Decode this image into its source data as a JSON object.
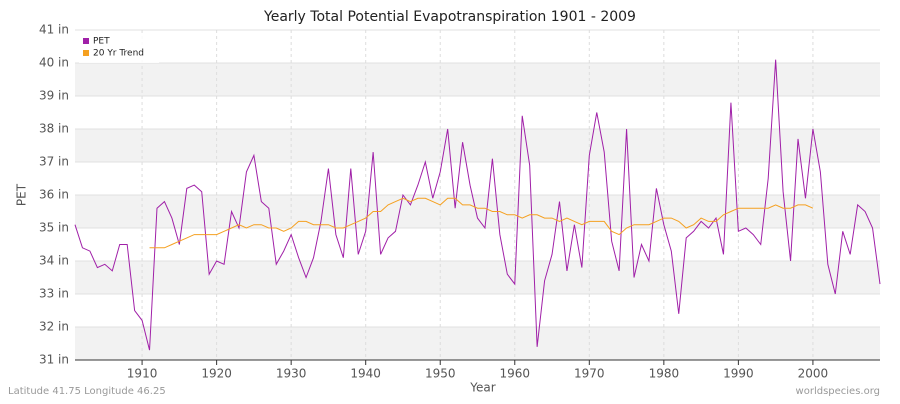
{
  "chart_data": {
    "type": "line",
    "title": "Yearly Total Potential Evapotranspiration 1901 - 2009",
    "x_label": "Year",
    "y_label": "PET",
    "footer_left": "Latitude 41.75 Longitude 46.25",
    "footer_right": "worldspecies.org",
    "legend": "top-left",
    "grid": true,
    "x": [
      1901,
      1902,
      1903,
      1904,
      1905,
      1906,
      1907,
      1908,
      1909,
      1910,
      1911,
      1912,
      1913,
      1914,
      1915,
      1916,
      1917,
      1918,
      1919,
      1920,
      1921,
      1922,
      1923,
      1924,
      1925,
      1926,
      1927,
      1928,
      1929,
      1930,
      1931,
      1932,
      1933,
      1934,
      1935,
      1936,
      1937,
      1938,
      1939,
      1940,
      1941,
      1942,
      1943,
      1944,
      1945,
      1946,
      1947,
      1948,
      1949,
      1950,
      1951,
      1952,
      1953,
      1954,
      1955,
      1956,
      1957,
      1958,
      1959,
      1960,
      1961,
      1962,
      1963,
      1964,
      1965,
      1966,
      1967,
      1968,
      1969,
      1970,
      1971,
      1972,
      1973,
      1974,
      1975,
      1976,
      1977,
      1978,
      1979,
      1980,
      1981,
      1982,
      1983,
      1984,
      1985,
      1986,
      1987,
      1988,
      1989,
      1990,
      1991,
      1992,
      1993,
      1994,
      1995,
      1996,
      1997,
      1998,
      1999,
      2000,
      2001,
      2002,
      2003,
      2004,
      2005,
      2006,
      2007,
      2008,
      2009
    ],
    "series": [
      {
        "name": "PET",
        "color": "#a020a8",
        "values": [
          35.1,
          34.4,
          34.3,
          33.8,
          33.9,
          33.7,
          34.5,
          34.5,
          32.5,
          32.2,
          31.3,
          35.6,
          35.8,
          35.3,
          34.5,
          36.2,
          36.3,
          36.1,
          33.6,
          34.0,
          33.9,
          35.5,
          35.0,
          36.7,
          37.2,
          35.8,
          35.6,
          33.9,
          34.3,
          34.8,
          34.1,
          33.5,
          34.1,
          35.2,
          36.8,
          34.8,
          34.1,
          36.8,
          34.2,
          34.9,
          37.3,
          34.2,
          34.7,
          34.9,
          36.0,
          35.7,
          36.3,
          37.0,
          35.9,
          36.7,
          38.0,
          35.6,
          37.6,
          36.3,
          35.3,
          35.0,
          37.1,
          34.8,
          33.6,
          33.3,
          38.4,
          36.9,
          31.4,
          33.4,
          34.2,
          35.8,
          33.7,
          35.1,
          33.8,
          37.2,
          38.5,
          37.3,
          34.6,
          33.7,
          38.0,
          33.5,
          34.5,
          34.0,
          36.2,
          35.1,
          34.3,
          32.4,
          34.7,
          34.9,
          35.2,
          35.0,
          35.3,
          34.2,
          38.8,
          34.9,
          35.0,
          34.8,
          34.5,
          36.5,
          40.1,
          36.1,
          34.0,
          37.7,
          35.9,
          38.0,
          36.7,
          33.9,
          33.0,
          34.9,
          34.2,
          35.7,
          35.5,
          35.0,
          33.3
        ]
      },
      {
        "name": "20 Yr Trend",
        "color": "#f5a020",
        "values": [
          null,
          null,
          null,
          null,
          null,
          null,
          null,
          null,
          null,
          null,
          34.4,
          34.4,
          34.4,
          34.5,
          34.6,
          34.7,
          34.8,
          34.8,
          34.8,
          34.8,
          34.9,
          35.0,
          35.1,
          35.0,
          35.1,
          35.1,
          35.0,
          35.0,
          34.9,
          35.0,
          35.2,
          35.2,
          35.1,
          35.1,
          35.1,
          35.0,
          35.0,
          35.1,
          35.2,
          35.3,
          35.5,
          35.5,
          35.7,
          35.8,
          35.9,
          35.8,
          35.9,
          35.9,
          35.8,
          35.7,
          35.9,
          35.9,
          35.7,
          35.7,
          35.6,
          35.6,
          35.5,
          35.5,
          35.4,
          35.4,
          35.3,
          35.4,
          35.4,
          35.3,
          35.3,
          35.2,
          35.3,
          35.2,
          35.1,
          35.2,
          35.2,
          35.2,
          34.9,
          34.8,
          35.0,
          35.1,
          35.1,
          35.1,
          35.2,
          35.3,
          35.3,
          35.2,
          35.0,
          35.1,
          35.3,
          35.2,
          35.2,
          35.4,
          35.5,
          35.6,
          35.6,
          35.6,
          35.6,
          35.6,
          35.7,
          35.6,
          35.6,
          35.7,
          35.7,
          35.6,
          null,
          null,
          null,
          null,
          null,
          null,
          null,
          null,
          null
        ]
      }
    ],
    "xlim": [
      1901,
      2009
    ],
    "xticks": [
      1910,
      1920,
      1930,
      1940,
      1950,
      1960,
      1970,
      1980,
      1990,
      2000
    ],
    "ylim": [
      31,
      41
    ],
    "yticks": [
      {
        "value": 31,
        "label": "31 in"
      },
      {
        "value": 32,
        "label": "32 in"
      },
      {
        "value": 33,
        "label": "33 in"
      },
      {
        "value": 34,
        "label": "34 in"
      },
      {
        "value": 35,
        "label": "35 in"
      },
      {
        "value": 36,
        "label": "36 in"
      },
      {
        "value": 37,
        "label": "37 in"
      },
      {
        "value": 38,
        "label": "38 in"
      },
      {
        "value": 39,
        "label": "39 in"
      },
      {
        "value": 40,
        "label": "40 in"
      },
      {
        "value": 41,
        "label": "41 in"
      }
    ]
  }
}
